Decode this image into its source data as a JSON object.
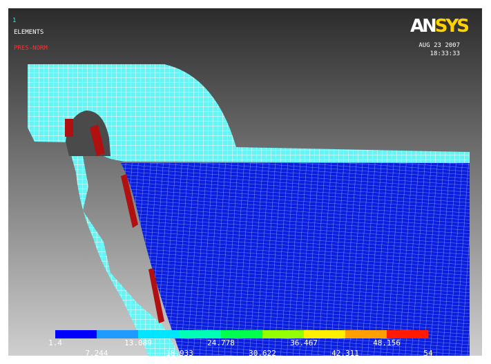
{
  "viewport": {
    "index": "1",
    "mode": "ELEMENTS",
    "label": "PRES-NORM"
  },
  "logo": "ANSYS",
  "timestamp": {
    "date": "AUG 23 2007",
    "time": "18:33:33"
  },
  "legend": {
    "colors": [
      "#0000ff",
      "#1e9bff",
      "#00e6ff",
      "#00ffb4",
      "#00ff4c",
      "#94ff00",
      "#fff000",
      "#ffa000",
      "#ff1a00"
    ],
    "labels": [
      "1.4",
      "7.244",
      "13.089",
      "18.933",
      "24.778",
      "30.622",
      "36.467",
      "42.311",
      "48.156",
      "54"
    ]
  }
}
